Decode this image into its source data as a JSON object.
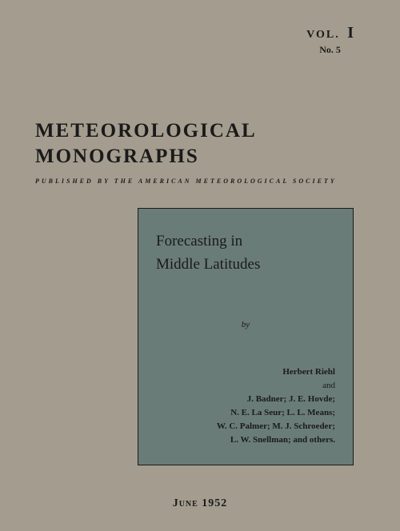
{
  "colors": {
    "page_background": "#a49d8f",
    "inset_background": "#6a7c78",
    "text": "#1a1a1a",
    "inset_border": "#1a1a1a"
  },
  "typography": {
    "series_title_fontsize": 25,
    "series_title_letterspacing": 2,
    "publisher_fontsize": 8,
    "publisher_letterspacing": 3,
    "inset_title_fontsize": 19,
    "authors_fontsize": 11,
    "date_fontsize": 14
  },
  "volume": {
    "label": "VOL.",
    "number": "I",
    "issue_label": "No.",
    "issue_number": "5"
  },
  "series_title_line1": "METEOROLOGICAL",
  "series_title_line2": "MONOGRAPHS",
  "publisher_line": "PUBLISHED BY THE AMERICAN METEOROLOGICAL SOCIETY",
  "inset": {
    "title_line1": "Forecasting in",
    "title_line2": "Middle Latitudes",
    "by": "by",
    "lead_author": "Herbert Riehl",
    "and": "and",
    "author_lines": [
      "J. Badner; J. E. Hovde;",
      "N. E. La Seur; L. L. Means;",
      "W. C. Palmer; M. J. Schroeder;",
      "L. W. Snellman; and others."
    ]
  },
  "date": "June 1952"
}
